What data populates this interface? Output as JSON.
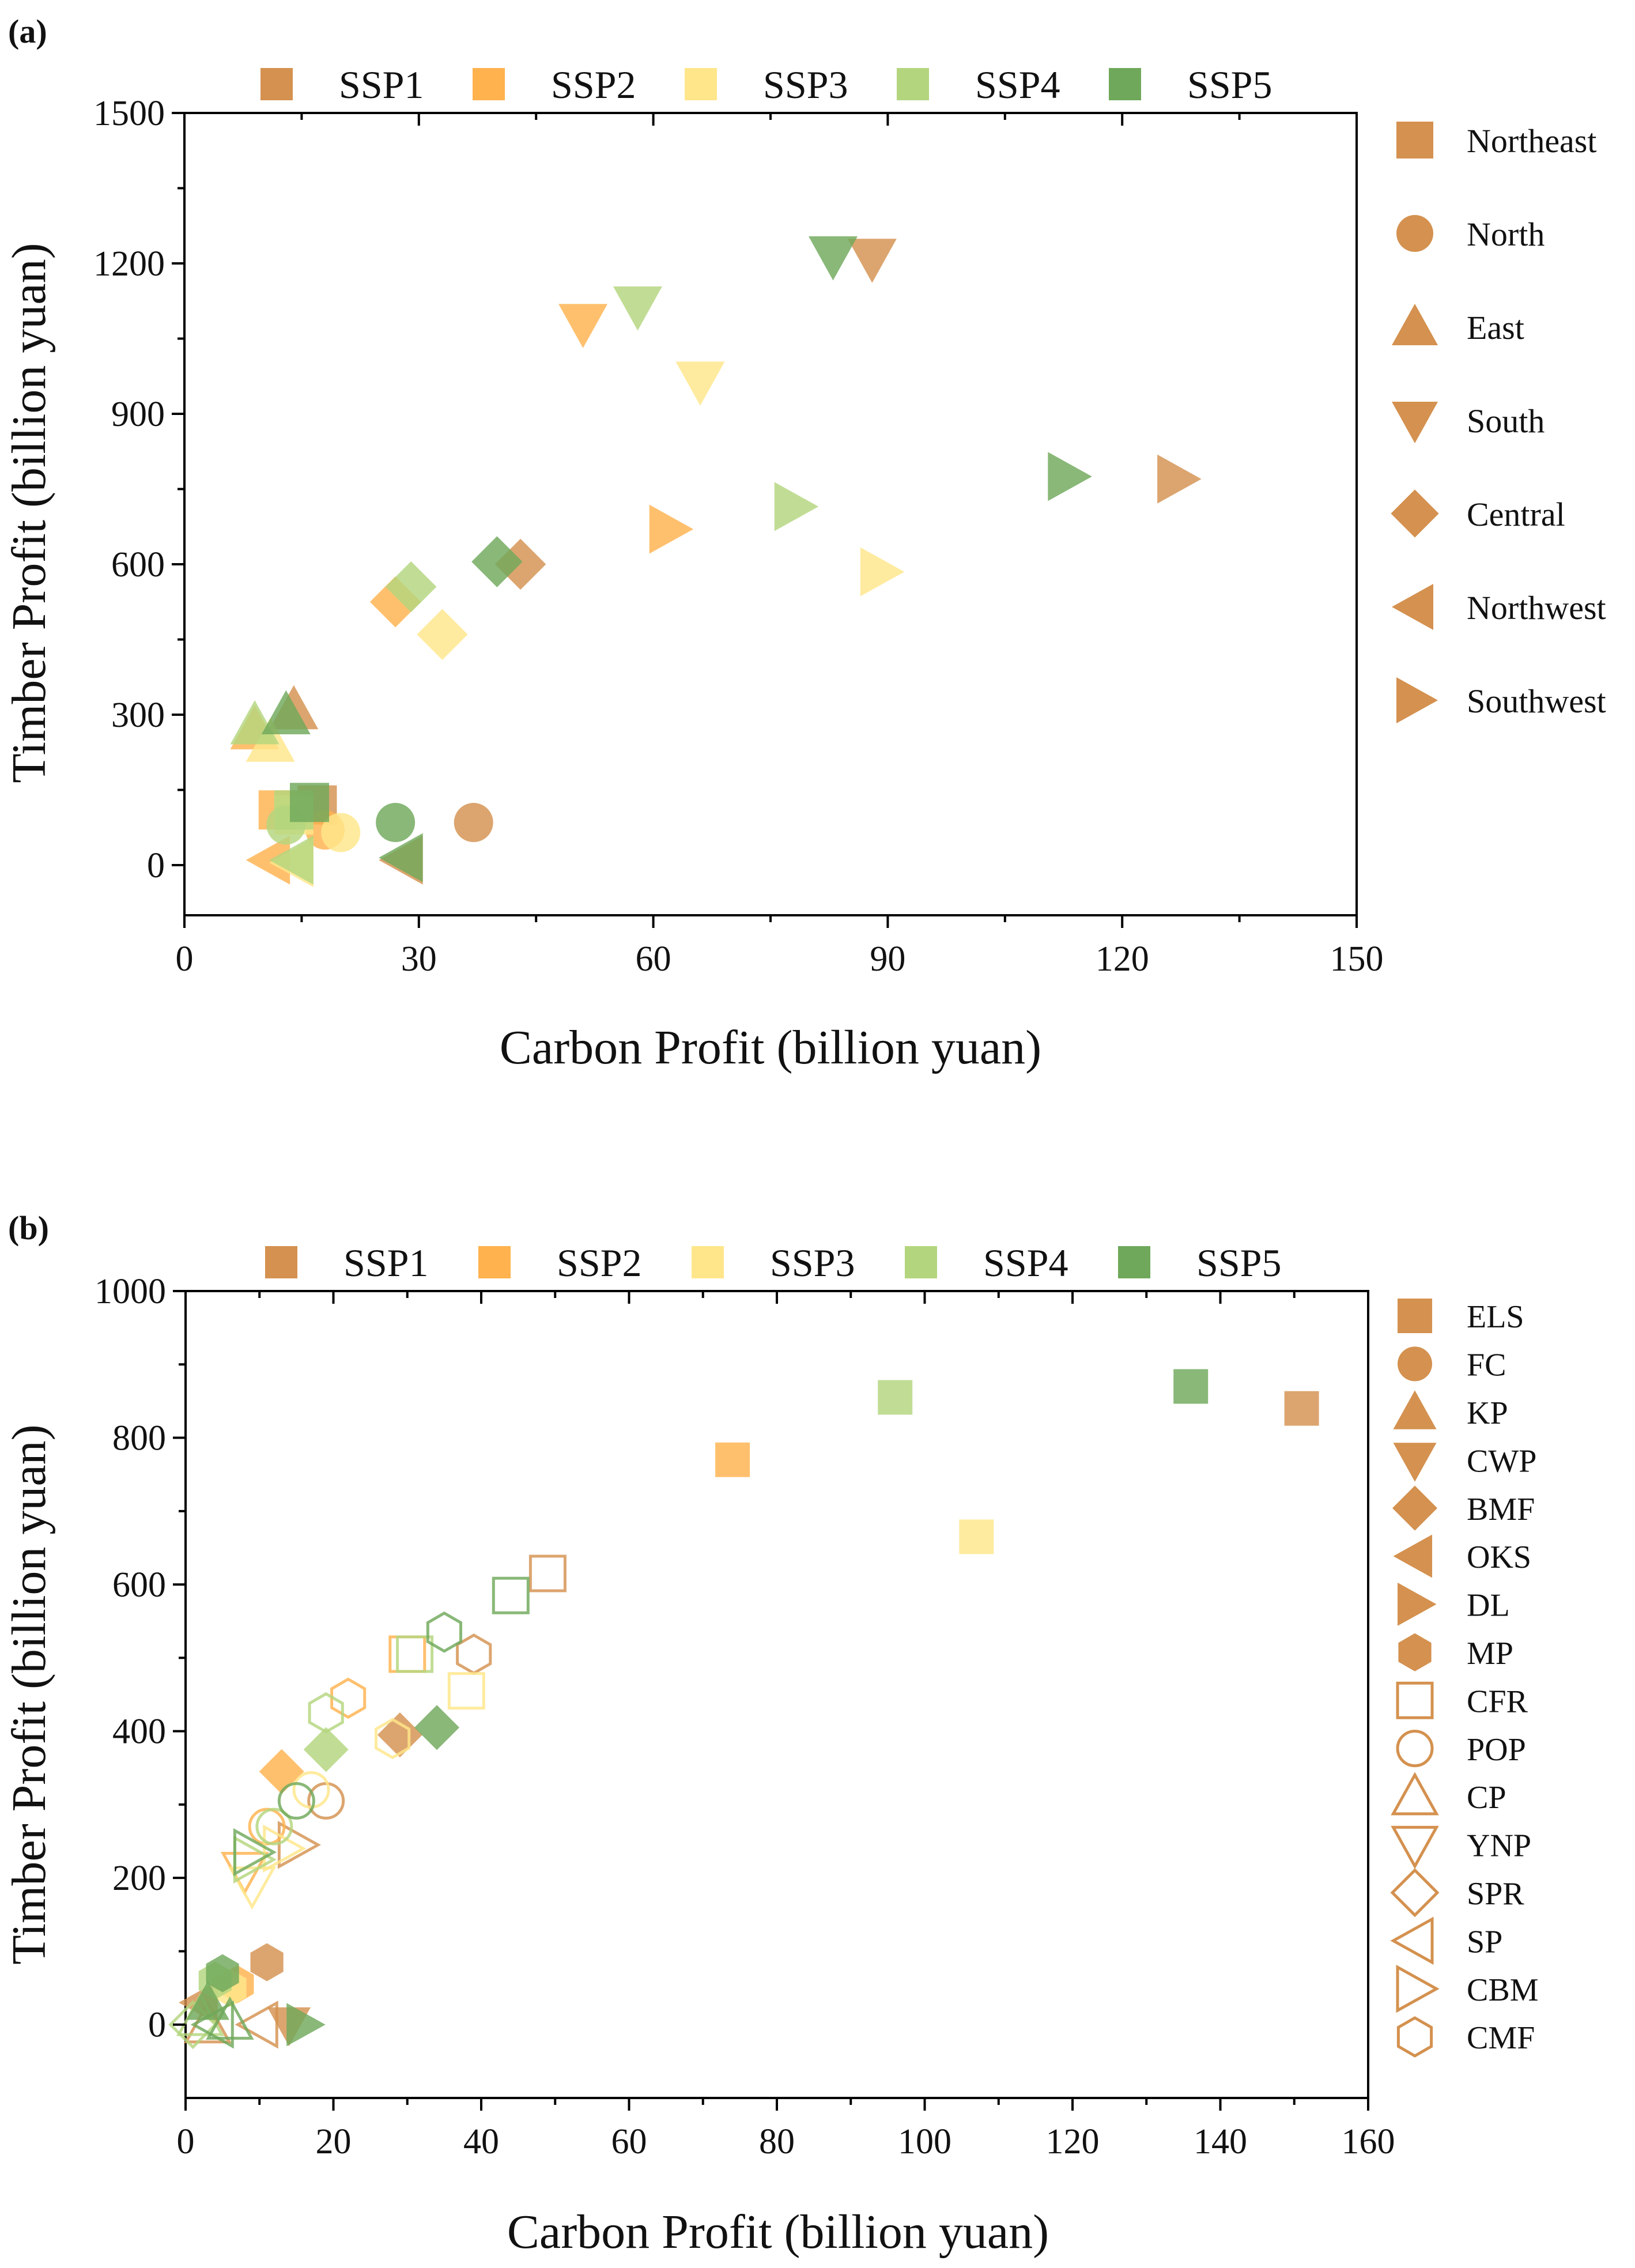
{
  "colors": {
    "SSP1": "#D4914F",
    "SSP2": "#FFB24E",
    "SSP3": "#FFE68A",
    "SSP4": "#B3D57E",
    "SSP5": "#6FA85A"
  },
  "chart_data": [
    {
      "type": "scatter",
      "panel_label": "(a)",
      "xlabel": "Carbon Profit (billion yuan)",
      "ylabel": "Timber Profit (billion yuan)",
      "xlim": [
        0,
        150
      ],
      "ylim": [
        -100,
        1500
      ],
      "xticks": [
        0,
        30,
        60,
        90,
        120,
        150
      ],
      "yticks": [
        0,
        300,
        600,
        900,
        1200,
        1500
      ],
      "scenario_legend": [
        "SSP1",
        "SSP2",
        "SSP3",
        "SSP4",
        "SSP5"
      ],
      "marker_legend": [
        {
          "label": "Northeast",
          "shape": "square"
        },
        {
          "label": "North",
          "shape": "circle"
        },
        {
          "label": "East",
          "shape": "triangle-up"
        },
        {
          "label": "South",
          "shape": "triangle-down"
        },
        {
          "label": "Central",
          "shape": "diamond"
        },
        {
          "label": "Northwest",
          "shape": "triangle-left"
        },
        {
          "label": "Southwest",
          "shape": "triangle-right"
        }
      ],
      "series": [
        {
          "name": "SSP1",
          "points": [
            {
              "group": "Northeast",
              "shape": "square",
              "filled": true,
              "x": 17,
              "y": 120
            },
            {
              "group": "North",
              "shape": "circle",
              "filled": true,
              "x": 37,
              "y": 85
            },
            {
              "group": "East",
              "shape": "triangle-up",
              "filled": true,
              "x": 14,
              "y": 310
            },
            {
              "group": "South",
              "shape": "triangle-down",
              "filled": true,
              "x": 88,
              "y": 1210
            },
            {
              "group": "Central",
              "shape": "diamond",
              "filled": true,
              "x": 43,
              "y": 600
            },
            {
              "group": "Northwest",
              "shape": "triangle-left",
              "filled": true,
              "x": 28,
              "y": 10
            },
            {
              "group": "Southwest",
              "shape": "triangle-right",
              "filled": true,
              "x": 127,
              "y": 770
            }
          ]
        },
        {
          "name": "SSP2",
          "points": [
            {
              "group": "Northeast",
              "shape": "square",
              "filled": true,
              "x": 12,
              "y": 110
            },
            {
              "group": "North",
              "shape": "circle",
              "filled": true,
              "x": 18,
              "y": 70
            },
            {
              "group": "East",
              "shape": "triangle-up",
              "filled": true,
              "x": 9,
              "y": 270
            },
            {
              "group": "South",
              "shape": "triangle-down",
              "filled": true,
              "x": 51,
              "y": 1080
            },
            {
              "group": "Central",
              "shape": "diamond",
              "filled": true,
              "x": 27,
              "y": 525
            },
            {
              "group": "Northwest",
              "shape": "triangle-left",
              "filled": true,
              "x": 11,
              "y": 10
            },
            {
              "group": "Southwest",
              "shape": "triangle-right",
              "filled": true,
              "x": 62,
              "y": 670
            }
          ]
        },
        {
          "name": "SSP3",
          "points": [
            {
              "group": "Northeast",
              "shape": "square",
              "filled": true,
              "x": 14,
              "y": 100
            },
            {
              "group": "North",
              "shape": "circle",
              "filled": true,
              "x": 20,
              "y": 65
            },
            {
              "group": "East",
              "shape": "triangle-up",
              "filled": true,
              "x": 11,
              "y": 245
            },
            {
              "group": "South",
              "shape": "triangle-down",
              "filled": true,
              "x": 66,
              "y": 965
            },
            {
              "group": "Central",
              "shape": "diamond",
              "filled": true,
              "x": 33,
              "y": 460
            },
            {
              "group": "Northwest",
              "shape": "triangle-left",
              "filled": true,
              "x": 14,
              "y": 5
            },
            {
              "group": "Southwest",
              "shape": "triangle-right",
              "filled": true,
              "x": 89,
              "y": 585
            }
          ]
        },
        {
          "name": "SSP4",
          "points": [
            {
              "group": "Northeast",
              "shape": "square",
              "filled": true,
              "x": 14,
              "y": 110
            },
            {
              "group": "North",
              "shape": "circle",
              "filled": true,
              "x": 13,
              "y": 80
            },
            {
              "group": "East",
              "shape": "triangle-up",
              "filled": true,
              "x": 9,
              "y": 280
            },
            {
              "group": "South",
              "shape": "triangle-down",
              "filled": true,
              "x": 58,
              "y": 1115
            },
            {
              "group": "Central",
              "shape": "diamond",
              "filled": true,
              "x": 29,
              "y": 555
            },
            {
              "group": "Northwest",
              "shape": "triangle-left",
              "filled": true,
              "x": 14,
              "y": 10
            },
            {
              "group": "Southwest",
              "shape": "triangle-right",
              "filled": true,
              "x": 78,
              "y": 715
            }
          ]
        },
        {
          "name": "SSP5",
          "points": [
            {
              "group": "Northeast",
              "shape": "square",
              "filled": true,
              "x": 16,
              "y": 125
            },
            {
              "group": "North",
              "shape": "circle",
              "filled": true,
              "x": 27,
              "y": 85
            },
            {
              "group": "East",
              "shape": "triangle-up",
              "filled": true,
              "x": 13,
              "y": 300
            },
            {
              "group": "South",
              "shape": "triangle-down",
              "filled": true,
              "x": 83,
              "y": 1215
            },
            {
              "group": "Central",
              "shape": "diamond",
              "filled": true,
              "x": 40,
              "y": 605
            },
            {
              "group": "Northwest",
              "shape": "triangle-left",
              "filled": true,
              "x": 28,
              "y": 15
            },
            {
              "group": "Southwest",
              "shape": "triangle-right",
              "filled": true,
              "x": 113,
              "y": 775
            }
          ]
        }
      ]
    },
    {
      "type": "scatter",
      "panel_label": "(b)",
      "xlabel": "Carbon Profit (billion yuan)",
      "ylabel": "Timber Profit (billion yuan)",
      "xlim": [
        0,
        160
      ],
      "ylim": [
        -100,
        1000
      ],
      "xticks": [
        0,
        20,
        40,
        60,
        80,
        100,
        120,
        140,
        160
      ],
      "yticks": [
        0,
        200,
        400,
        600,
        800,
        1000
      ],
      "scenario_legend": [
        "SSP1",
        "SSP2",
        "SSP3",
        "SSP4",
        "SSP5"
      ],
      "marker_legend": [
        {
          "label": "ELS",
          "shape": "square",
          "filled": true
        },
        {
          "label": "FC",
          "shape": "circle",
          "filled": true
        },
        {
          "label": "KP",
          "shape": "triangle-up",
          "filled": true
        },
        {
          "label": "CWP",
          "shape": "triangle-down",
          "filled": true
        },
        {
          "label": "BMF",
          "shape": "diamond",
          "filled": true
        },
        {
          "label": "OKS",
          "shape": "triangle-left",
          "filled": true
        },
        {
          "label": "DL",
          "shape": "triangle-right",
          "filled": true
        },
        {
          "label": "MP",
          "shape": "hexagon",
          "filled": true
        },
        {
          "label": "CFR",
          "shape": "square",
          "filled": false
        },
        {
          "label": "POP",
          "shape": "circle",
          "filled": false
        },
        {
          "label": "CP",
          "shape": "triangle-up",
          "filled": false
        },
        {
          "label": "YNP",
          "shape": "triangle-down",
          "filled": false
        },
        {
          "label": "SPR",
          "shape": "diamond",
          "filled": false
        },
        {
          "label": "SP",
          "shape": "triangle-left",
          "filled": false
        },
        {
          "label": "CBM",
          "shape": "triangle-right",
          "filled": false
        },
        {
          "label": "CMF",
          "shape": "hexagon",
          "filled": false
        }
      ],
      "series": [
        {
          "name": "SSP1",
          "points": [
            {
              "group": "ELS",
              "shape": "square",
              "filled": true,
              "x": 151,
              "y": 840
            },
            {
              "group": "MP",
              "shape": "hexagon",
              "filled": true,
              "x": 11,
              "y": 85
            },
            {
              "group": "BMF",
              "shape": "diamond",
              "filled": true,
              "x": 29,
              "y": 395
            },
            {
              "group": "CWP",
              "shape": "triangle-down",
              "filled": true,
              "x": 14,
              "y": 0
            },
            {
              "group": "OKS",
              "shape": "triangle-left",
              "filled": true,
              "x": 2,
              "y": 30
            },
            {
              "group": "CFR",
              "shape": "square",
              "filled": false,
              "x": 49,
              "y": 615
            },
            {
              "group": "CMF",
              "shape": "hexagon",
              "filled": false,
              "x": 39,
              "y": 505
            },
            {
              "group": "POP",
              "shape": "circle",
              "filled": false,
              "x": 19,
              "y": 305
            },
            {
              "group": "CBM",
              "shape": "triangle-right",
              "filled": false,
              "x": 15,
              "y": 245
            },
            {
              "group": "SP",
              "shape": "triangle-left",
              "filled": false,
              "x": 10,
              "y": 0
            },
            {
              "group": "CP",
              "shape": "triangle-up",
              "filled": false,
              "x": 3,
              "y": 0
            }
          ]
        },
        {
          "name": "SSP2",
          "points": [
            {
              "group": "ELS",
              "shape": "square",
              "filled": true,
              "x": 74,
              "y": 770
            },
            {
              "group": "BMF",
              "shape": "diamond",
              "filled": true,
              "x": 13,
              "y": 345
            },
            {
              "group": "MP",
              "shape": "hexagon",
              "filled": true,
              "x": 7,
              "y": 55
            },
            {
              "group": "CFR",
              "shape": "square",
              "filled": false,
              "x": 30,
              "y": 505
            },
            {
              "group": "CMF",
              "shape": "hexagon",
              "filled": false,
              "x": 22,
              "y": 445
            },
            {
              "group": "POP",
              "shape": "circle",
              "filled": false,
              "x": 11,
              "y": 270
            },
            {
              "group": "YNP",
              "shape": "triangle-down",
              "filled": false,
              "x": 8,
              "y": 210
            }
          ]
        },
        {
          "name": "SSP3",
          "points": [
            {
              "group": "ELS",
              "shape": "square",
              "filled": true,
              "x": 107,
              "y": 665
            },
            {
              "group": "MP",
              "shape": "hexagon",
              "filled": true,
              "x": 6,
              "y": 50
            },
            {
              "group": "CFR",
              "shape": "square",
              "filled": false,
              "x": 38,
              "y": 455
            },
            {
              "group": "CMF",
              "shape": "hexagon",
              "filled": false,
              "x": 28,
              "y": 390
            },
            {
              "group": "POP",
              "shape": "circle",
              "filled": false,
              "x": 17,
              "y": 320
            },
            {
              "group": "YNP",
              "shape": "triangle-down",
              "filled": false,
              "x": 9,
              "y": 190
            },
            {
              "group": "CBM",
              "shape": "triangle-right",
              "filled": false,
              "x": 13,
              "y": 240
            }
          ]
        },
        {
          "name": "SSP4",
          "points": [
            {
              "group": "ELS",
              "shape": "square",
              "filled": true,
              "x": 96,
              "y": 855
            },
            {
              "group": "BMF",
              "shape": "diamond",
              "filled": true,
              "x": 19,
              "y": 375
            },
            {
              "group": "MP",
              "shape": "hexagon",
              "filled": true,
              "x": 4,
              "y": 60
            },
            {
              "group": "CFR",
              "shape": "square",
              "filled": false,
              "x": 31,
              "y": 505
            },
            {
              "group": "CMF",
              "shape": "hexagon",
              "filled": false,
              "x": 19,
              "y": 425
            },
            {
              "group": "POP",
              "shape": "circle",
              "filled": false,
              "x": 12,
              "y": 270
            },
            {
              "group": "CBM",
              "shape": "triangle-right",
              "filled": false,
              "x": 9,
              "y": 225
            },
            {
              "group": "SPR",
              "shape": "diamond",
              "filled": false,
              "x": 1,
              "y": 0
            },
            {
              "group": "CP",
              "shape": "triangle-up",
              "filled": false,
              "x": 2,
              "y": 10
            }
          ]
        },
        {
          "name": "SSP5",
          "points": [
            {
              "group": "ELS",
              "shape": "square",
              "filled": true,
              "x": 136,
              "y": 870
            },
            {
              "group": "BMF",
              "shape": "diamond",
              "filled": true,
              "x": 34,
              "y": 405
            },
            {
              "group": "MP",
              "shape": "hexagon",
              "filled": true,
              "x": 5,
              "y": 70
            },
            {
              "group": "DL",
              "shape": "triangle-right",
              "filled": true,
              "x": 16,
              "y": 0
            },
            {
              "group": "KP",
              "shape": "triangle-up",
              "filled": true,
              "x": 3,
              "y": 30
            },
            {
              "group": "CFR",
              "shape": "square",
              "filled": false,
              "x": 44,
              "y": 585
            },
            {
              "group": "CMF",
              "shape": "hexagon",
              "filled": false,
              "x": 35,
              "y": 535
            },
            {
              "group": "POP",
              "shape": "circle",
              "filled": false,
              "x": 15,
              "y": 305
            },
            {
              "group": "CBM",
              "shape": "triangle-right",
              "filled": false,
              "x": 9,
              "y": 235
            },
            {
              "group": "CP",
              "shape": "triangle-up",
              "filled": false,
              "x": 6,
              "y": 5
            },
            {
              "group": "SP",
              "shape": "triangle-left",
              "filled": false,
              "x": 4,
              "y": 0
            }
          ]
        }
      ]
    }
  ]
}
